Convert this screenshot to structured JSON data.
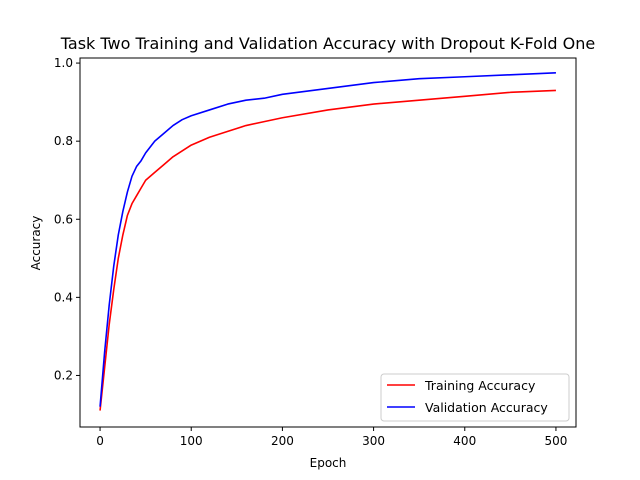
{
  "chart_data": {
    "type": "line",
    "title": "Task Two Training and Validation Accuracy with Dropout K-Fold One",
    "xlabel": "Epoch",
    "ylabel": "Accuracy",
    "xlim": [
      -22,
      522
    ],
    "ylim": [
      0.068,
      1.013
    ],
    "xticks": [
      0,
      100,
      200,
      300,
      400,
      500
    ],
    "yticks": [
      0.2,
      0.4,
      0.6,
      0.8,
      1.0
    ],
    "ytick_labels": [
      "0.2",
      "0.4",
      "0.6",
      "0.8",
      "1.0"
    ],
    "grid": false,
    "legend_position": "lower-right",
    "series": [
      {
        "name": "Training Accuracy",
        "color": "#ff0000",
        "x": [
          0,
          5,
          10,
          15,
          20,
          25,
          30,
          35,
          40,
          45,
          50,
          60,
          70,
          80,
          90,
          100,
          120,
          140,
          160,
          180,
          200,
          250,
          300,
          350,
          400,
          450,
          500
        ],
        "y": [
          0.11,
          0.22,
          0.33,
          0.42,
          0.5,
          0.56,
          0.61,
          0.64,
          0.66,
          0.68,
          0.7,
          0.72,
          0.74,
          0.76,
          0.775,
          0.79,
          0.81,
          0.825,
          0.84,
          0.85,
          0.86,
          0.88,
          0.895,
          0.905,
          0.915,
          0.925,
          0.93
        ]
      },
      {
        "name": "Validation Accuracy",
        "color": "#0000ff",
        "x": [
          0,
          5,
          10,
          15,
          20,
          25,
          30,
          35,
          40,
          45,
          50,
          60,
          70,
          80,
          90,
          100,
          120,
          140,
          160,
          180,
          200,
          250,
          300,
          350,
          400,
          450,
          500
        ],
        "y": [
          0.12,
          0.26,
          0.38,
          0.48,
          0.56,
          0.62,
          0.67,
          0.71,
          0.735,
          0.75,
          0.77,
          0.8,
          0.82,
          0.84,
          0.855,
          0.865,
          0.88,
          0.895,
          0.905,
          0.91,
          0.92,
          0.935,
          0.95,
          0.96,
          0.965,
          0.97,
          0.975
        ]
      }
    ]
  }
}
